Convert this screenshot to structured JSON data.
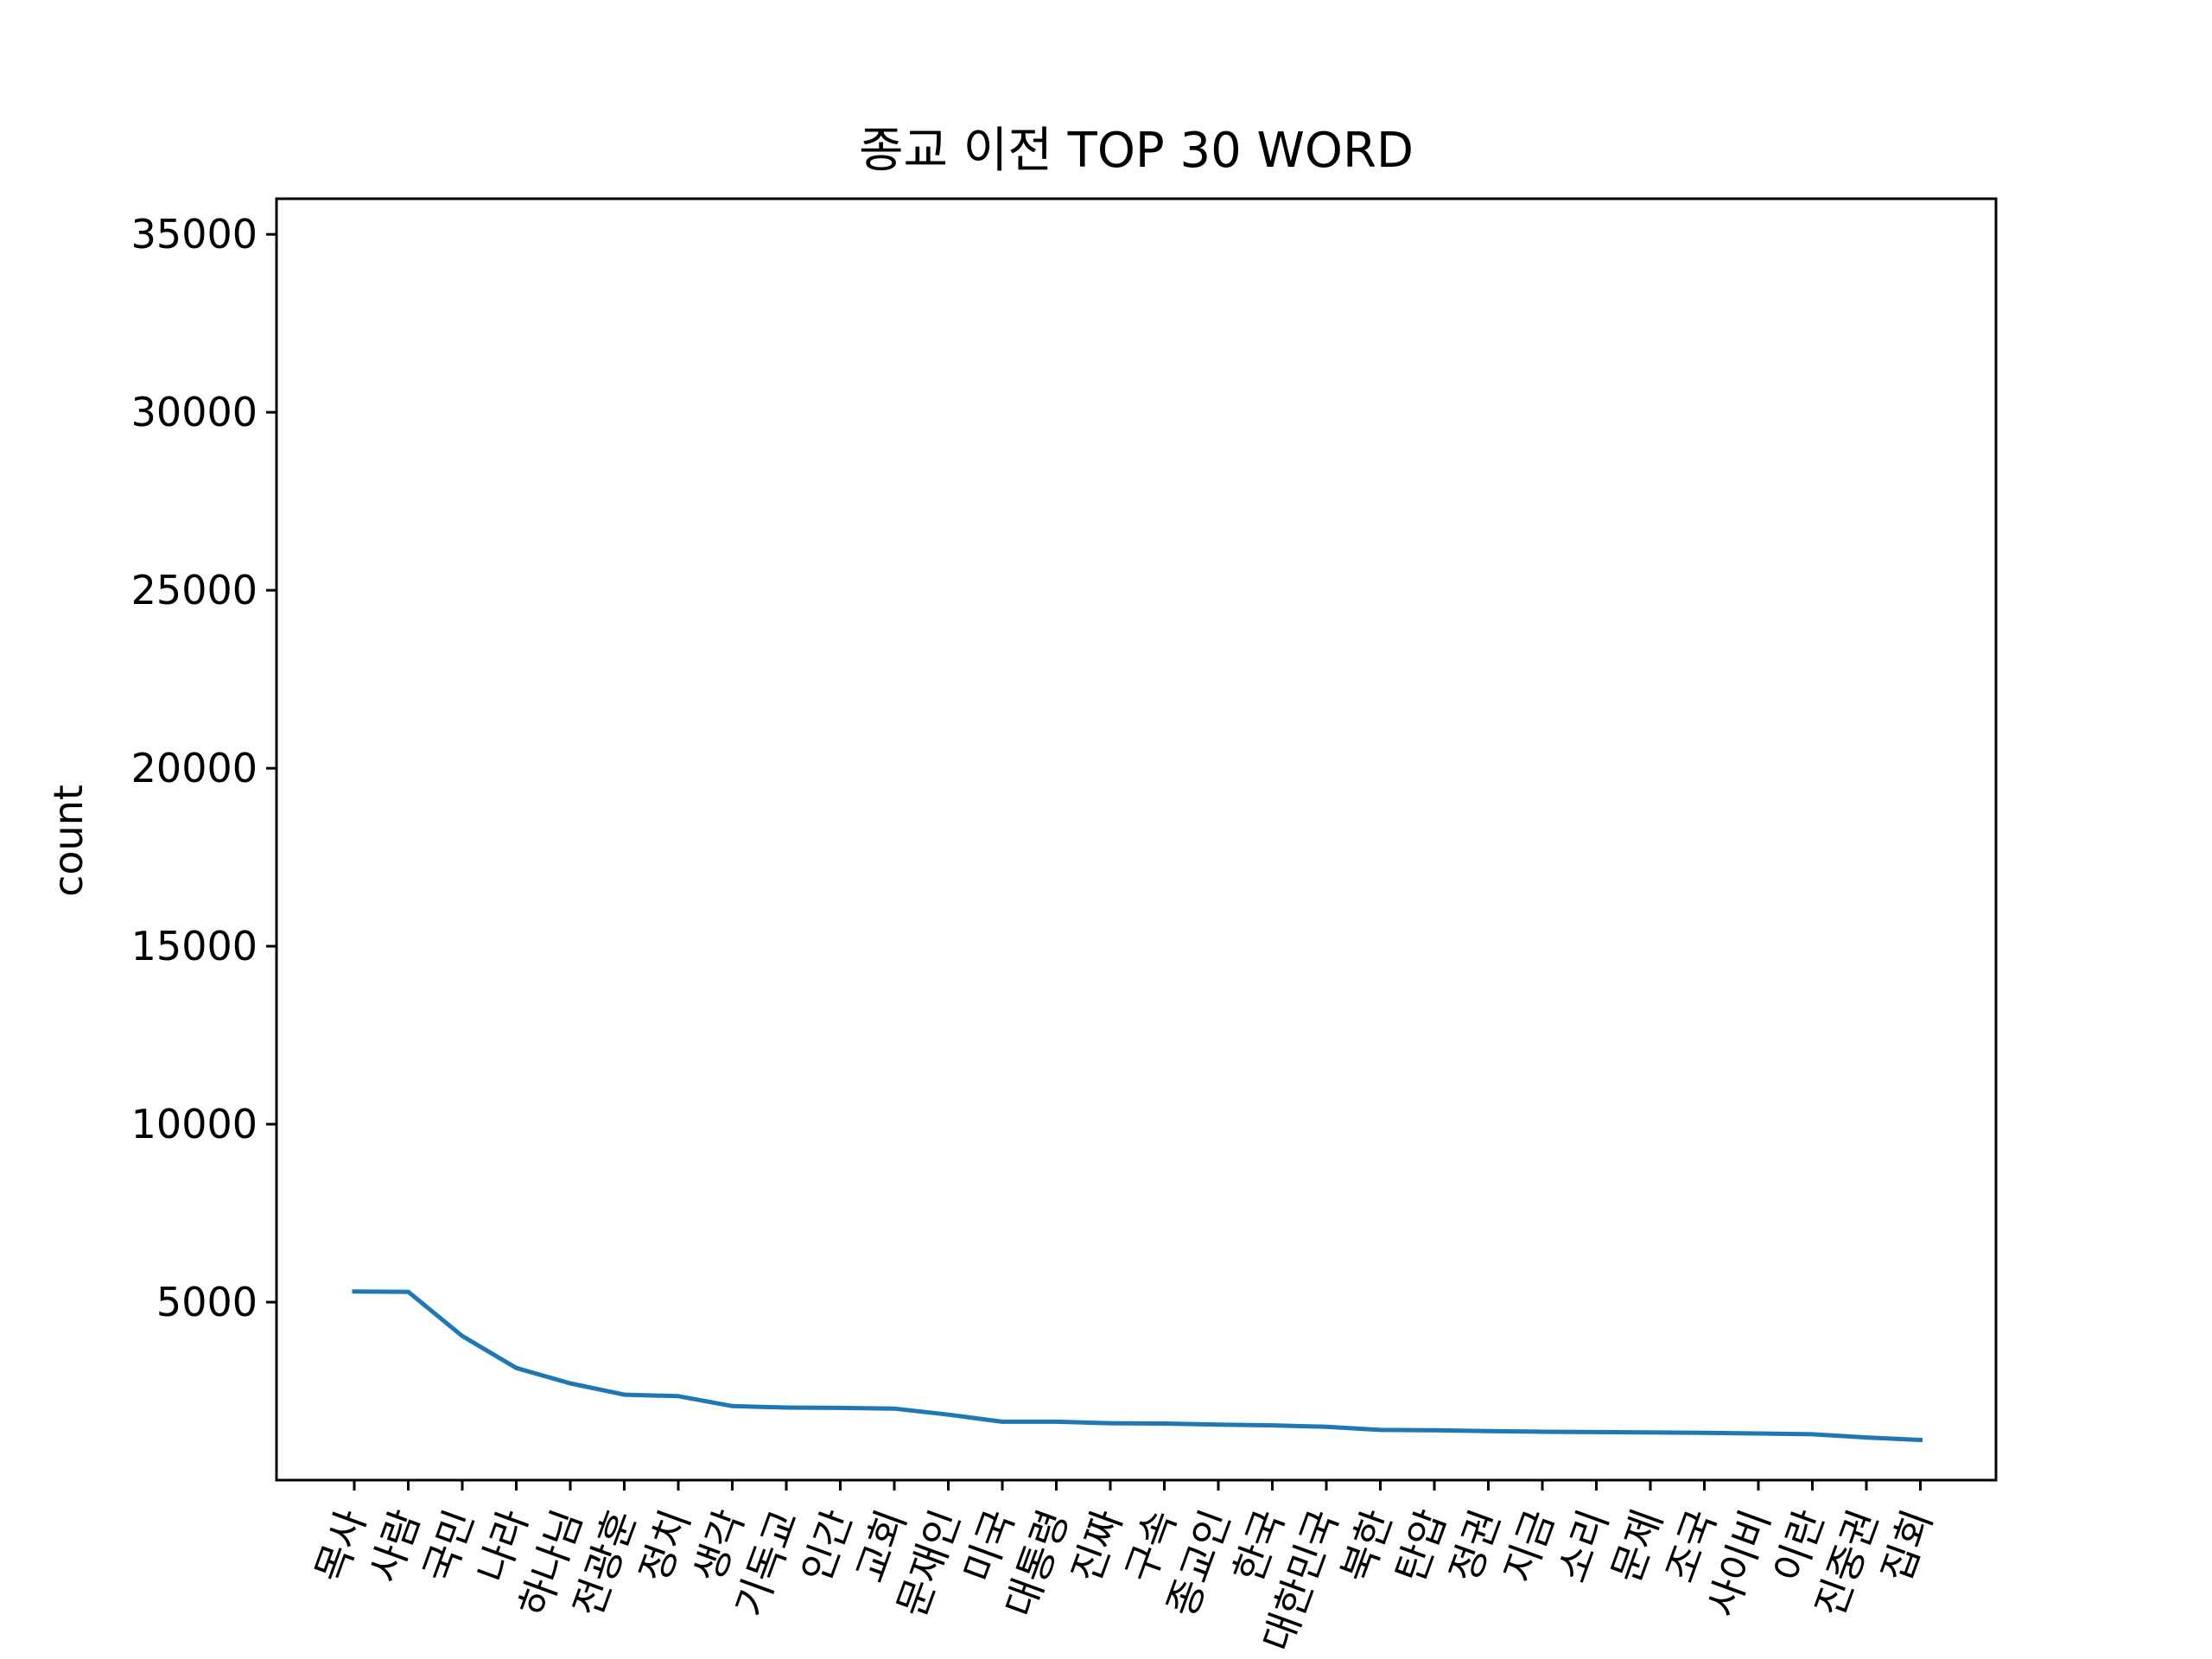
{
  "chart_data": {
    "type": "line",
    "title": "종교 이전 TOP 30 WORD",
    "xlabel": "",
    "ylabel": "count",
    "ylim": [
      0,
      36000
    ],
    "yticks": [
      5000,
      10000,
      15000,
      20000,
      25000,
      30000,
      35000
    ],
    "ytick_labels": [
      "5000",
      "10000",
      "15000",
      "20000",
      "25000",
      "30000",
      "35000"
    ],
    "grid": false,
    "categories": [
      "목사",
      "사람",
      "국민",
      "나라",
      "하나님",
      "전광훈",
      "정치",
      "생각",
      "기독교",
      "인간",
      "교회",
      "문재인",
      "미국",
      "대통령",
      "진짜",
      "구속",
      "종교인",
      "한국",
      "대한민국",
      "북한",
      "탄압",
      "정권",
      "지금",
      "소리",
      "문제",
      "조국",
      "사이비",
      "이란",
      "진중권",
      "집회"
    ],
    "series": [
      {
        "color": "#1f77b4",
        "values": [
          5300,
          5290,
          4050,
          3150,
          2720,
          2400,
          2360,
          2080,
          2040,
          2030,
          2010,
          1840,
          1640,
          1640,
          1600,
          1590,
          1560,
          1540,
          1500,
          1410,
          1400,
          1380,
          1360,
          1350,
          1340,
          1330,
          1310,
          1290,
          1200,
          1130
        ]
      }
    ]
  }
}
